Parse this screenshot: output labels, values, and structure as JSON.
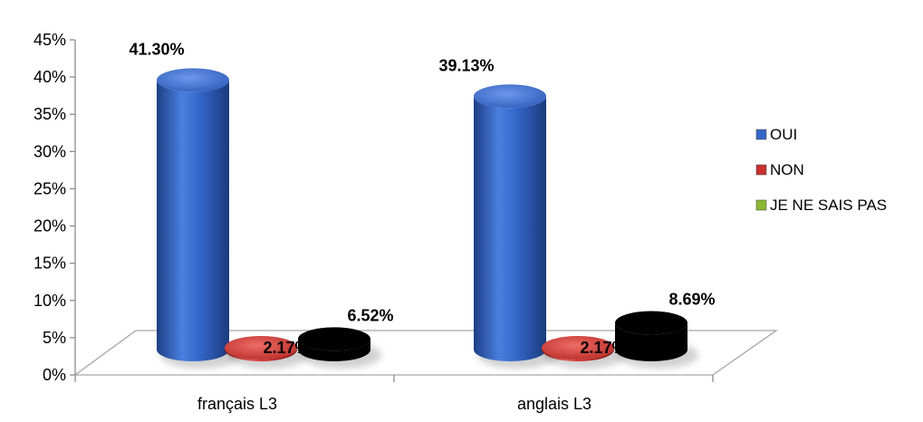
{
  "chart_data": {
    "type": "bar",
    "title": "",
    "xlabel": "",
    "ylabel": "",
    "categories": [
      "français L3",
      "anglais L3"
    ],
    "series": [
      {
        "name": "OUI",
        "values": [
          41.3,
          39.13
        ],
        "labels": [
          "41.30%",
          "39.13%"
        ],
        "color": "#3366c8"
      },
      {
        "name": "NON",
        "values": [
          2.17,
          2.17
        ],
        "labels": [
          "2.17%",
          "2.17%"
        ],
        "color": "#c8302c"
      },
      {
        "name": "JE NE SAIS PAS",
        "values": [
          6.52,
          8.69
        ],
        "labels": [
          "6.52%",
          "8.69%"
        ],
        "color": "#8bb832"
      }
    ],
    "ylim": [
      0,
      45
    ],
    "yticks": [
      "0%",
      "5%",
      "10%",
      "15%",
      "20%",
      "25%",
      "30%",
      "35%",
      "40%",
      "45%"
    ],
    "legend_position": "right",
    "grid": false,
    "style": "3d-cylinder"
  }
}
